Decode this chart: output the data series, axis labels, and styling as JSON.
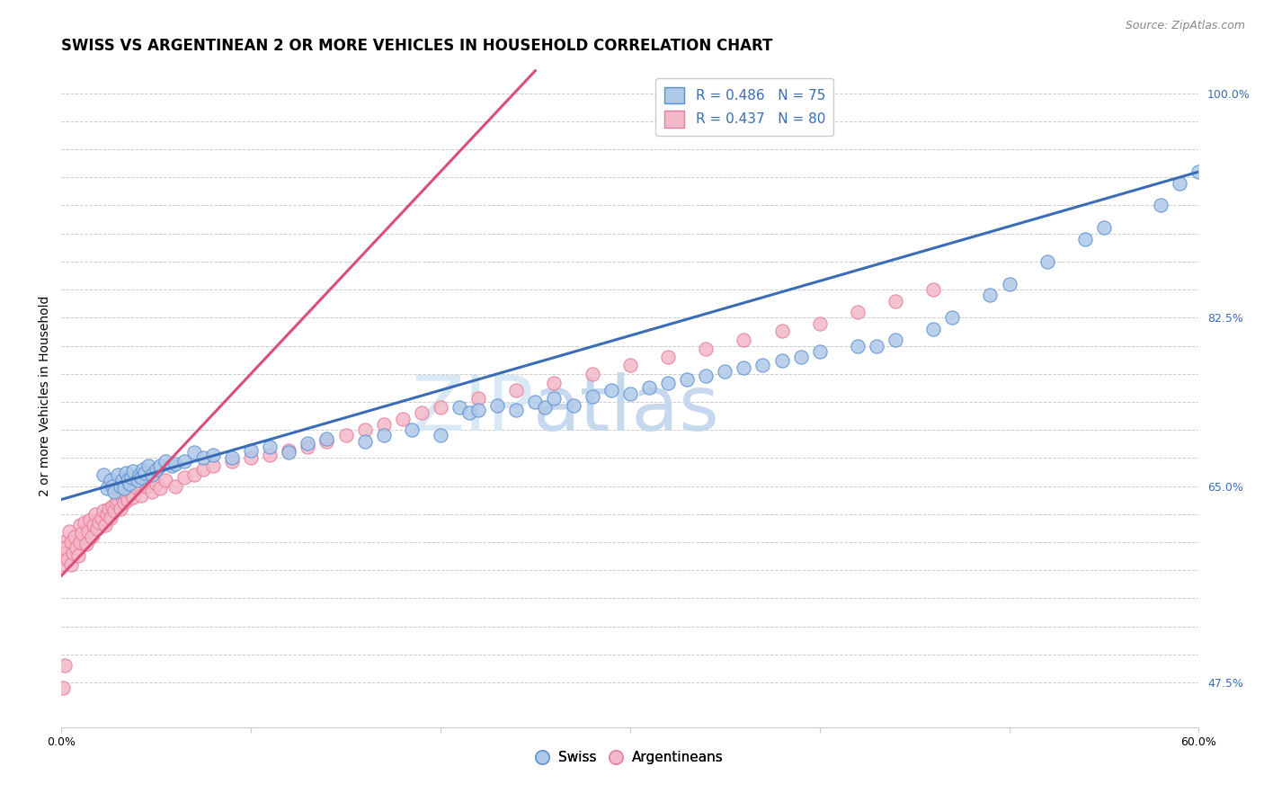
{
  "title": "SWISS VS ARGENTINEAN 2 OR MORE VEHICLES IN HOUSEHOLD CORRELATION CHART",
  "source_text": "Source: ZipAtlas.com",
  "ylabel": "2 or more Vehicles in Household",
  "xmin": 0.0,
  "xmax": 0.6,
  "ymin": 0.435,
  "ymax": 1.025,
  "ytick_vals": [
    0.475,
    0.5,
    0.525,
    0.55,
    0.575,
    0.6,
    0.625,
    0.65,
    0.675,
    0.7,
    0.725,
    0.75,
    0.775,
    0.8,
    0.825,
    0.85,
    0.875,
    0.9,
    0.925,
    0.95,
    0.975,
    1.0
  ],
  "ytick_labels": [
    "47.5%",
    "",
    "",
    "",
    "",
    "",
    "",
    "65.0%",
    "",
    "",
    "",
    "",
    "",
    "82.5%",
    "",
    "",
    "",
    "",
    "",
    "",
    "",
    "100.0%"
  ],
  "xtick_vals": [
    0.0,
    0.1,
    0.2,
    0.3,
    0.4,
    0.5,
    0.6
  ],
  "xtick_labels": [
    "0.0%",
    "",
    "",
    "",
    "",
    "",
    "60.0%"
  ],
  "watermark_part1": "ZIP",
  "watermark_part2": "atlas",
  "legend_swiss_label": "R = 0.486   N = 75",
  "legend_arg_label": "R = 0.437   N = 80",
  "blue_fill": "#aec8e8",
  "blue_edge": "#5b8fd4",
  "blue_line": "#3a6db5",
  "pink_fill": "#f4b8c8",
  "pink_edge": "#e87a9a",
  "pink_line": "#d94f7a",
  "label_color": "#3a6db5",
  "title_fontsize": 12,
  "axis_label_fontsize": 10,
  "tick_fontsize": 9,
  "legend_fontsize": 11,
  "source_fontsize": 9,
  "swiss_x": [
    0.022,
    0.024,
    0.026,
    0.027,
    0.028,
    0.03,
    0.031,
    0.032,
    0.033,
    0.034,
    0.035,
    0.036,
    0.037,
    0.038,
    0.04,
    0.041,
    0.042,
    0.043,
    0.044,
    0.046,
    0.048,
    0.05,
    0.052,
    0.055,
    0.058,
    0.06,
    0.065,
    0.07,
    0.075,
    0.08,
    0.09,
    0.1,
    0.11,
    0.12,
    0.13,
    0.14,
    0.16,
    0.17,
    0.185,
    0.2,
    0.21,
    0.215,
    0.22,
    0.23,
    0.24,
    0.25,
    0.255,
    0.26,
    0.27,
    0.28,
    0.29,
    0.3,
    0.31,
    0.32,
    0.33,
    0.34,
    0.35,
    0.36,
    0.37,
    0.38,
    0.39,
    0.4,
    0.42,
    0.43,
    0.44,
    0.46,
    0.47,
    0.49,
    0.5,
    0.52,
    0.54,
    0.55,
    0.58,
    0.59,
    0.6
  ],
  "swiss_y": [
    0.66,
    0.648,
    0.655,
    0.65,
    0.645,
    0.66,
    0.65,
    0.655,
    0.648,
    0.662,
    0.655,
    0.652,
    0.658,
    0.663,
    0.655,
    0.66,
    0.658,
    0.665,
    0.662,
    0.668,
    0.66,
    0.665,
    0.668,
    0.672,
    0.668,
    0.67,
    0.672,
    0.68,
    0.675,
    0.678,
    0.675,
    0.682,
    0.685,
    0.68,
    0.688,
    0.692,
    0.69,
    0.695,
    0.7,
    0.695,
    0.72,
    0.715,
    0.718,
    0.722,
    0.718,
    0.725,
    0.72,
    0.728,
    0.722,
    0.73,
    0.735,
    0.732,
    0.738,
    0.742,
    0.745,
    0.748,
    0.752,
    0.755,
    0.758,
    0.762,
    0.765,
    0.77,
    0.775,
    0.775,
    0.78,
    0.79,
    0.8,
    0.82,
    0.83,
    0.85,
    0.87,
    0.88,
    0.9,
    0.92,
    0.93
  ],
  "arg_x": [
    0.0,
    0.0,
    0.001,
    0.002,
    0.003,
    0.004,
    0.005,
    0.005,
    0.006,
    0.007,
    0.008,
    0.009,
    0.01,
    0.01,
    0.011,
    0.012,
    0.013,
    0.014,
    0.015,
    0.016,
    0.017,
    0.018,
    0.019,
    0.02,
    0.021,
    0.022,
    0.023,
    0.024,
    0.025,
    0.026,
    0.027,
    0.028,
    0.029,
    0.03,
    0.031,
    0.032,
    0.033,
    0.034,
    0.035,
    0.036,
    0.038,
    0.04,
    0.042,
    0.045,
    0.048,
    0.05,
    0.052,
    0.055,
    0.06,
    0.065,
    0.07,
    0.075,
    0.08,
    0.09,
    0.1,
    0.11,
    0.12,
    0.13,
    0.14,
    0.15,
    0.16,
    0.17,
    0.18,
    0.19,
    0.2,
    0.22,
    0.24,
    0.26,
    0.28,
    0.3,
    0.32,
    0.34,
    0.36,
    0.38,
    0.4,
    0.42,
    0.44,
    0.46,
    0.001,
    0.002
  ],
  "arg_y": [
    0.6,
    0.58,
    0.59,
    0.595,
    0.585,
    0.61,
    0.58,
    0.6,
    0.59,
    0.605,
    0.595,
    0.588,
    0.615,
    0.6,
    0.608,
    0.618,
    0.598,
    0.61,
    0.62,
    0.605,
    0.615,
    0.625,
    0.612,
    0.618,
    0.622,
    0.628,
    0.615,
    0.625,
    0.63,
    0.622,
    0.632,
    0.628,
    0.635,
    0.638,
    0.63,
    0.64,
    0.635,
    0.642,
    0.638,
    0.645,
    0.64,
    0.648,
    0.642,
    0.65,
    0.645,
    0.652,
    0.648,
    0.655,
    0.65,
    0.658,
    0.66,
    0.665,
    0.668,
    0.672,
    0.675,
    0.678,
    0.682,
    0.685,
    0.69,
    0.695,
    0.7,
    0.705,
    0.71,
    0.715,
    0.72,
    0.728,
    0.735,
    0.742,
    0.75,
    0.758,
    0.765,
    0.772,
    0.78,
    0.788,
    0.795,
    0.805,
    0.815,
    0.825,
    0.47,
    0.49
  ],
  "blue_line_x0": 0.0,
  "blue_line_y0": 0.638,
  "blue_line_x1": 0.6,
  "blue_line_y1": 0.93,
  "pink_line_x0": 0.0,
  "pink_line_y0": 0.57,
  "pink_line_x1": 0.25,
  "pink_line_y1": 1.02
}
